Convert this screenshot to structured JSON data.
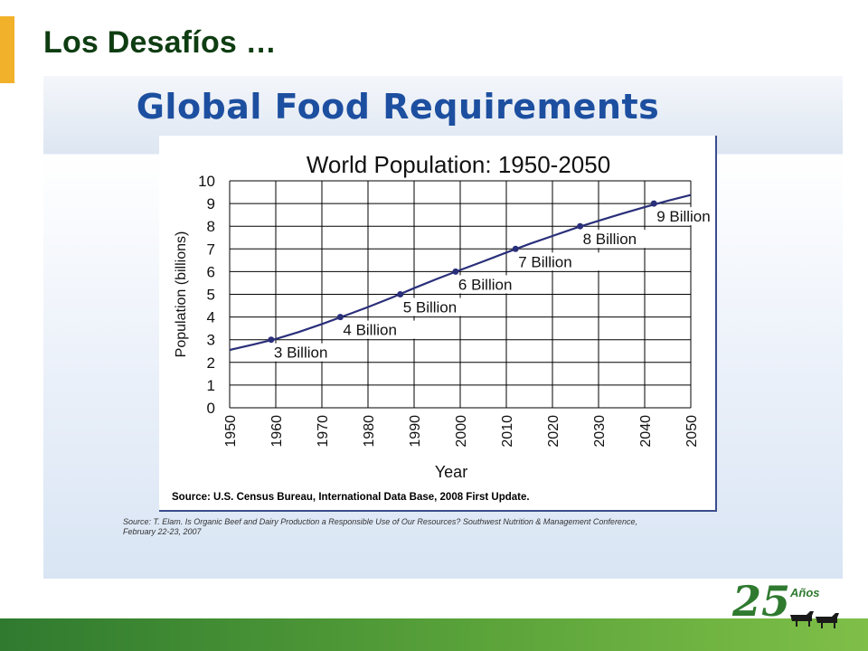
{
  "slide": {
    "title": "Los Desafíos …",
    "heading": "Global Food Requirements",
    "citation": "Source: T. Elam. Is Organic Beef and Dairy Production a Responsible Use of Our Resources? Southwest Nutrition & Management Conference, February 22-23, 2007",
    "accent_color": "#f2b12a",
    "title_color": "#0f3d12",
    "heading_color": "#1d4fa0",
    "footer_color": "#3f8f32"
  },
  "logo": {
    "number": "25",
    "word": "Años",
    "icon": "cattle-icon"
  },
  "chart_data": {
    "type": "line",
    "title": "World Population: 1950-2050",
    "xlabel": "Year",
    "ylabel": "Population (billions)",
    "source": "Source: U.S. Census Bureau, International Data Base, 2008 First Update.",
    "xlim": [
      1950,
      2050
    ],
    "ylim": [
      0,
      10
    ],
    "x_ticks": [
      "1950",
      "1960",
      "1970",
      "1980",
      "1990",
      "2000",
      "2010",
      "2020",
      "2030",
      "2040",
      "2050"
    ],
    "y_ticks": [
      "0",
      "1",
      "2",
      "3",
      "4",
      "5",
      "6",
      "7",
      "8",
      "9",
      "10"
    ],
    "grid": true,
    "line_color": "#2a2f7a",
    "series": [
      {
        "x": [
          1950,
          1955,
          1960,
          1965,
          1970,
          1975,
          1980,
          1985,
          1990,
          1995,
          2000,
          2005,
          2010,
          2015,
          2020,
          2025,
          2030,
          2035,
          2040,
          2045,
          2050
        ],
        "values": [
          2.55,
          2.78,
          3.03,
          3.34,
          3.69,
          4.06,
          4.44,
          4.84,
          5.27,
          5.68,
          6.07,
          6.45,
          6.84,
          7.22,
          7.57,
          7.92,
          8.24,
          8.55,
          8.84,
          9.12,
          9.38
        ]
      }
    ],
    "milestones": [
      {
        "x": 1959,
        "y": 3,
        "label": "3 Billion"
      },
      {
        "x": 1974,
        "y": 4,
        "label": "4 Billion"
      },
      {
        "x": 1987,
        "y": 5,
        "label": "5 Billion"
      },
      {
        "x": 1999,
        "y": 6,
        "label": "6 Billion"
      },
      {
        "x": 2012,
        "y": 7,
        "label": "7 Billion"
      },
      {
        "x": 2026,
        "y": 8,
        "label": "8 Billion"
      },
      {
        "x": 2042,
        "y": 9,
        "label": "9 Billion"
      }
    ]
  }
}
